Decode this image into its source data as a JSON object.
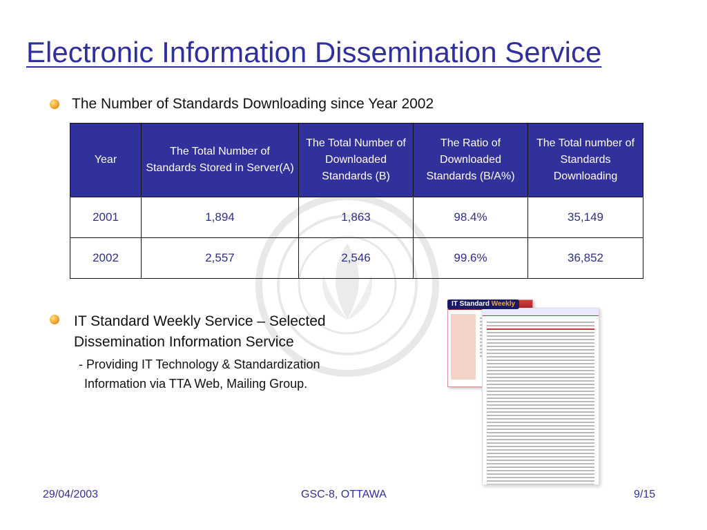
{
  "title": "Electronic Information Dissemination Service",
  "bullet1": "The Number of Standards Downloading since Year 2002",
  "table": {
    "headers": [
      "Year",
      "The Total Number of Standards Stored in Server(A)",
      "The Total Number of Downloaded Standards (B)",
      "The Ratio of Downloaded Standards (B/A%)",
      "The Total number of Standards Downloading"
    ],
    "rows": [
      [
        "2001",
        "1,894",
        "1,863",
        "98.4%",
        "35,149"
      ],
      [
        "2002",
        "2,557",
        "2,546",
        "99.6%",
        "36,852"
      ]
    ]
  },
  "bullet2": "IT Standard Weekly Service – Selected Dissemination Information Service",
  "sub": {
    "line1": "- Providing IT Technology & Standardization",
    "line2": "Information via TTA Web, Mailing Group."
  },
  "screenshot": {
    "logo_prefix": "IT Standard",
    "logo_suffix": "Weekly"
  },
  "footer": {
    "date": "29/04/2003",
    "center": "GSC-8, OTTAWA",
    "page": "9/15"
  },
  "colors": {
    "title": "#2f2f9e",
    "table_header_bg": "#31319b",
    "cell_text": "#2e2e8e",
    "bullet": "#f4a52a"
  }
}
